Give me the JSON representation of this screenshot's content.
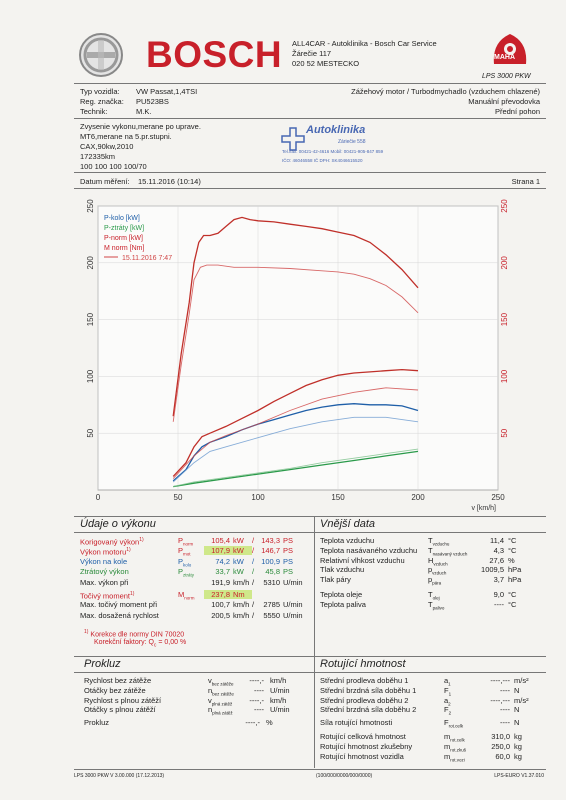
{
  "header": {
    "brand": "BOSCH",
    "company_lines": [
      "ALL4CAR - Autoklinika - Bosch Car Service",
      "Žárečie 117",
      "020 52 MESTECKO"
    ],
    "maha_brand": "MAHA",
    "maha_model": "LPS 3000 PKW"
  },
  "vehicle": {
    "type_label": "Typ vozidla:",
    "type_value": "VW Passat,1,4TSI",
    "reg_label": "Reg. značka:",
    "reg_value": "PU523BS",
    "tech_label": "Technik:",
    "tech_value": "M.K.",
    "engine_type": "Zážehový motor / Turbodmychadlo (vzduchem chlazené)",
    "gearbox": "Manuální převodovka",
    "drive": "Přední pohon"
  },
  "notes": [
    "Zvysenie vykonu,merane po uprave.",
    "MT6,merane na 5.pr.stupni.",
    "CAX,90kw,2010",
    "172335km",
    "100 100 100 100/70"
  ],
  "stamp": {
    "name": "Autoklinika",
    "lines": [
      "Záriečie 558",
      "Tel./fax: 00421-42-4616 Mobil: 00421-905-847 859",
      "IČO: 46046558  IČ DPH: SK4046615520"
    ]
  },
  "measurement": {
    "date_label": "Datum měření:",
    "date_value": "15.11.2016 (10:14)",
    "page_label": "Strana 1"
  },
  "chart_data": {
    "type": "line",
    "x_label": "v [km/h]",
    "xlim": [
      0,
      250
    ],
    "ylim_left": [
      0,
      250
    ],
    "ylim_right": [
      0,
      250
    ],
    "x_ticks": [
      0,
      50,
      100,
      150,
      200,
      250
    ],
    "y_ticks": [
      50,
      100,
      150,
      200,
      250
    ],
    "legend": [
      {
        "name": "P-kolo [kW]",
        "color": "#1f5fa8"
      },
      {
        "name": "P-ztráty [kW]",
        "color": "#2a9a4a"
      },
      {
        "name": "P-norm [kW]",
        "color": "#c8202a"
      },
      {
        "name": "M norm [Nm]",
        "color": "#c8202a"
      },
      {
        "name": "15.11.2016 7:47",
        "color": "#d04545"
      }
    ],
    "series": [
      {
        "name": "M norm [Nm]",
        "color": "#c0302a",
        "x": [
          47,
          52,
          57,
          60,
          63,
          66,
          70,
          75,
          80,
          85,
          90,
          95,
          100,
          110,
          120,
          130,
          140,
          150,
          160,
          170,
          180,
          190,
          200
        ],
        "y": [
          65,
          120,
          165,
          200,
          218,
          224,
          224,
          226,
          232,
          238,
          240,
          238,
          237,
          236,
          234,
          232,
          230,
          227,
          224,
          218,
          207,
          194,
          178
        ]
      },
      {
        "name": "P-norm [kW]",
        "color": "#c0302a",
        "x": [
          47,
          55,
          60,
          65,
          70,
          80,
          90,
          100,
          110,
          120,
          130,
          140,
          150,
          160,
          170,
          180,
          190,
          200
        ],
        "y": [
          12,
          24,
          38,
          47,
          50,
          56,
          63,
          70,
          78,
          85,
          92,
          97,
          101,
          103,
          104,
          105,
          106,
          105
        ]
      },
      {
        "name": "P-kolo [kW]",
        "color": "#1f5fa8",
        "x": [
          47,
          55,
          60,
          65,
          70,
          80,
          90,
          100,
          110,
          120,
          130,
          140,
          150,
          160,
          170,
          180,
          190,
          200
        ],
        "y": [
          8,
          18,
          30,
          38,
          42,
          47,
          53,
          58,
          62,
          66,
          70,
          73,
          75,
          76,
          75,
          75,
          74,
          70
        ]
      },
      {
        "name": "P-ztráty [kW]",
        "color": "#2a9a4a",
        "x": [
          47,
          60,
          80,
          100,
          120,
          140,
          160,
          180,
          200
        ],
        "y": [
          3,
          6,
          10,
          14,
          18,
          22,
          26,
          30,
          34
        ]
      },
      {
        "name": "15.11.2016 7:47 M",
        "color": "#d04545",
        "dashed": true,
        "x": [
          47,
          52,
          57,
          60,
          64,
          68,
          75,
          85,
          100,
          120,
          140,
          150,
          160,
          170,
          180,
          190,
          200
        ],
        "y": [
          60,
          110,
          155,
          185,
          196,
          198,
          198,
          196,
          196,
          195,
          193,
          192,
          190,
          186,
          180,
          170,
          156
        ]
      },
      {
        "name": "15.11.2016 7:47 P",
        "color": "#d04545",
        "dashed": true,
        "x": [
          47,
          60,
          70,
          80,
          100,
          120,
          140,
          160,
          180,
          200
        ],
        "y": [
          10,
          30,
          42,
          48,
          58,
          70,
          80,
          86,
          90,
          88
        ]
      },
      {
        "name": "15.11.2016 7:47 Pk",
        "color": "#6a9ad0",
        "dashed": true,
        "x": [
          47,
          60,
          70,
          80,
          100,
          120,
          140,
          160,
          180,
          200
        ],
        "y": [
          7,
          24,
          34,
          38,
          46,
          54,
          60,
          64,
          64,
          60
        ]
      },
      {
        "name": "15.11.2016 7:47 Pz",
        "color": "#7ac08a",
        "dashed": true,
        "x": [
          47,
          60,
          80,
          100,
          120,
          140,
          160,
          180,
          200
        ],
        "y": [
          3,
          7,
          11,
          15,
          19,
          24,
          28,
          32,
          36
        ]
      }
    ]
  },
  "performance": {
    "title": "Údaje o výkonu",
    "rows": [
      {
        "label": "Korigovaný výkon",
        "sup": "1)",
        "sym": "P",
        "sub": "norm",
        "v1": "105,4",
        "u1": "kW",
        "sep": "/",
        "v2": "143,3",
        "u2": "PS",
        "cls": "red",
        "hl": ""
      },
      {
        "label": "Výkon motoru",
        "sup": "1)",
        "sym": "P",
        "sub": "mot",
        "v1": "107,9",
        "u1": "kW",
        "sep": "/",
        "v2": "146,7",
        "u2": "PS",
        "cls": "red",
        "hl": "hl"
      },
      {
        "label": "Výkon na kole",
        "sup": "",
        "sym": "P",
        "sub": "kolo",
        "v1": "74,2",
        "u1": "kW",
        "sep": "/",
        "v2": "100,9",
        "u2": "PS",
        "cls": "blue",
        "hl": ""
      },
      {
        "label": "Ztrátový výkon",
        "sup": "",
        "sym": "P",
        "sub": "ztráty",
        "v1": "33,7",
        "u1": "kW",
        "sep": "/",
        "v2": "45,8",
        "u2": "PS",
        "cls": "green",
        "hl": ""
      },
      {
        "label": "Max. výkon při",
        "sup": "",
        "sym": "",
        "sub": "",
        "v1": "191,9",
        "u1": "km/h",
        "sep": "/",
        "v2": "5310",
        "u2": "U/min",
        "cls": "",
        "hl": ""
      }
    ],
    "torque_rows": [
      {
        "label": "Točivý moment",
        "sup": "1)",
        "sym": "M",
        "sub": "norm",
        "v1": "237,8",
        "u1": "Nm",
        "sep": "",
        "v2": "",
        "u2": "",
        "cls": "red",
        "hl": "hl"
      },
      {
        "label": "Max. točivý moment při",
        "sup": "",
        "sym": "",
        "sub": "",
        "v1": "100,7",
        "u1": "km/h",
        "sep": "/",
        "v2": "2785",
        "u2": "U/min",
        "cls": "",
        "hl": ""
      },
      {
        "label": "Max. dosažená rychlost",
        "sup": "",
        "sym": "",
        "sub": "",
        "v1": "200,5",
        "u1": "km/h",
        "sep": "/",
        "v2": "5550",
        "u2": "U/min",
        "cls": "",
        "hl": ""
      }
    ],
    "correction_note": "Korekce dle normy DIN 70020",
    "correction_sup": "1)",
    "correction_factor_label": "Korekční faktory: Q",
    "correction_factor_sub": "c",
    "correction_factor_value": "= 0,00 %"
  },
  "external": {
    "title": "Vnější data",
    "rows": [
      {
        "label": "Teplota vzduchu",
        "sym": "T",
        "sub": "vzduchu",
        "val": "11,4",
        "unit": "°C"
      },
      {
        "label": "Teplota nasávaného vzduchu",
        "sym": "T",
        "sub": "nasávaný vzduch",
        "val": "4,3",
        "unit": "°C"
      },
      {
        "label": "Relativní vlhkost vzduchu",
        "sym": "H",
        "sub": "vzduch",
        "val": "27,6",
        "unit": "%"
      },
      {
        "label": "Tlak vzduchu",
        "sym": "p",
        "sub": "vzduch",
        "val": "1009,5",
        "unit": "hPa"
      },
      {
        "label": "Tlak páry",
        "sym": "p",
        "sub": "pára",
        "val": "3,7",
        "unit": "hPa"
      }
    ],
    "rows2": [
      {
        "label": "Teplota oleje",
        "sym": "T",
        "sub": "olej",
        "val": "9,0",
        "unit": "°C"
      },
      {
        "label": "Teplota paliva",
        "sym": "T",
        "sub": "palivo",
        "val": "----",
        "unit": "°C"
      }
    ]
  },
  "coast": {
    "title": "Prokluz",
    "rows": [
      {
        "label": "Rychlost bez zátěže",
        "sym": "v",
        "sub": "bez zátěže",
        "val": "----,-",
        "unit": "km/h"
      },
      {
        "label": "Otáčky bez zátěže",
        "sym": "n",
        "sub": "bez zátěže",
        "val": "----",
        "unit": "U/min"
      },
      {
        "label": "Rychlost s plnou zátěží",
        "sym": "v",
        "sub": "plná zátěž",
        "val": "----,-",
        "unit": "km/h"
      },
      {
        "label": "Otáčky s plnou zátěží",
        "sym": "n",
        "sub": "plná zátěž",
        "val": "----",
        "unit": "U/min"
      }
    ],
    "slip_label": "Prokluz",
    "slip_val": "----,-",
    "slip_unit": "%"
  },
  "rotating": {
    "title": "Rotující hmotnost",
    "rows": [
      {
        "label": "Střední prodleva doběhu 1",
        "sym": "a",
        "sub": "1",
        "val": "----,---",
        "unit": "m/s²"
      },
      {
        "label": "Střední brzdná síla doběhu 1",
        "sym": "F",
        "sub": "1",
        "val": "----",
        "unit": "N"
      },
      {
        "label": "Střední prodleva doběhu 2",
        "sym": "a",
        "sub": "2",
        "val": "----,---",
        "unit": "m/s²"
      },
      {
        "label": "Střední brzdná síla doběhu 2",
        "sym": "F",
        "sub": "2",
        "val": "----",
        "unit": "N"
      }
    ],
    "rows2": [
      {
        "label": "Síla rotující hmotnosti",
        "sym": "F",
        "sub": "rot.celk",
        "val": "----",
        "unit": "N"
      }
    ],
    "rows3": [
      {
        "label": "Rotující celková hmotnost",
        "sym": "m",
        "sub": "rot.celk",
        "val": "310,0",
        "unit": "kg"
      },
      {
        "label": "Rotující hmotnost zkušebny",
        "sym": "m",
        "sub": "rot.zkuš",
        "val": "250,0",
        "unit": "kg"
      },
      {
        "label": "Rotující hmotnost vozidla",
        "sym": "m",
        "sub": "rot.vozi",
        "val": "60,0",
        "unit": "kg"
      }
    ]
  },
  "footer": {
    "left": "LPS 3000 PKW V 3.00.000 (17.12.2013)",
    "center": "(100/000/0000/000/0000)",
    "right": "LPS-EURO V1.37.010"
  }
}
